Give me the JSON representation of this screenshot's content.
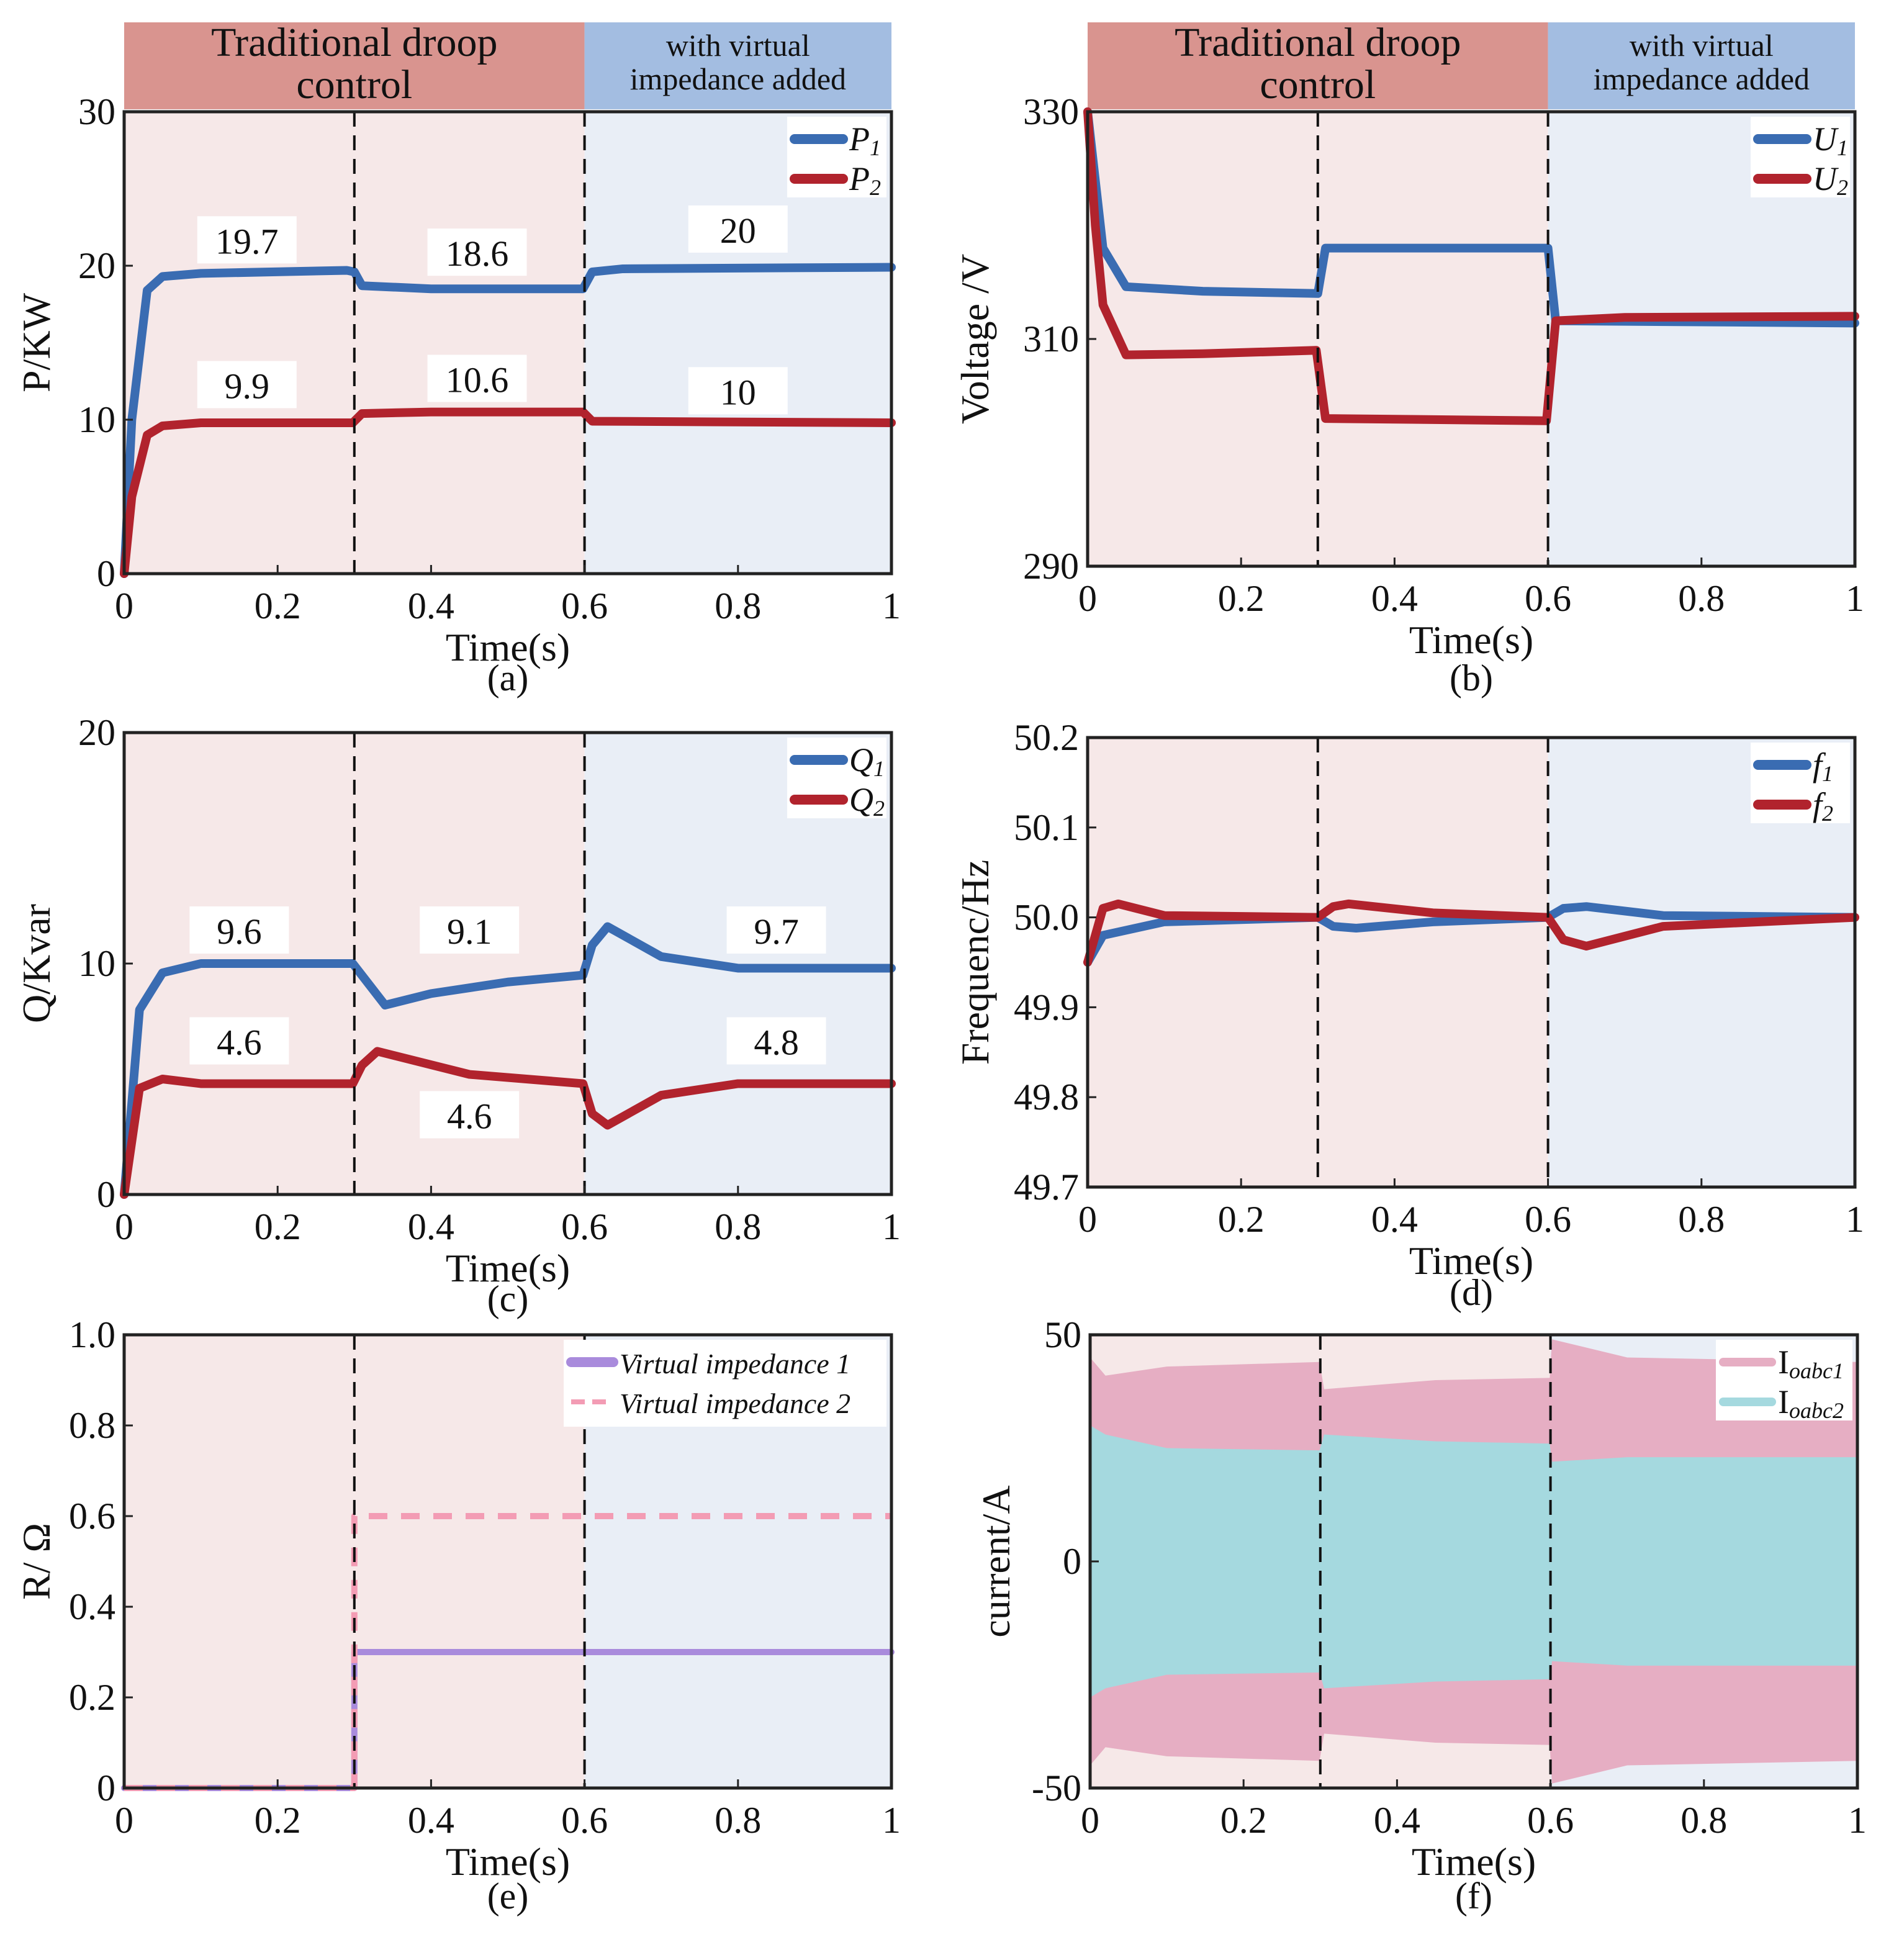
{
  "regions": {
    "traditional": "Traditional droop control",
    "traditional_lines": [
      "Traditional droop",
      "control"
    ],
    "virtual_lines": [
      "with virtual",
      "impedance added"
    ],
    "boundaries": [
      0.3,
      0.6
    ]
  },
  "colors": {
    "header_pink": "#d9948f",
    "header_blue": "#a3bde1",
    "bg_pink": "#f6e8e8",
    "bg_blue": "#e9eef6",
    "blue": "#3a6cb2",
    "red": "#b1232d",
    "purple": "#a98bdc",
    "pink_dash": "#f39cb4",
    "current1": "#e6aec3",
    "current2": "#a5d9df"
  },
  "chart_data": [
    {
      "id": "a",
      "type": "line",
      "caption": "(a)",
      "header": true,
      "xlabel": "Time(s)",
      "ylabel": "P/KW",
      "xlim": [
        0,
        1
      ],
      "ylim": [
        0,
        30
      ],
      "xticks": [
        0,
        0.2,
        0.4,
        0.6,
        0.8,
        1
      ],
      "xticklabels": [
        "0",
        "0.2",
        "0.4",
        "0.6",
        "0.8",
        "1"
      ],
      "yticks": [
        0,
        10,
        20,
        30
      ],
      "yticklabels": [
        "0",
        "10",
        "20",
        "30"
      ],
      "legend": "top-right",
      "series": [
        {
          "name": "P",
          "sub": "1",
          "color": "blue",
          "points": [
            [
              0,
              0
            ],
            [
              0.01,
              10
            ],
            [
              0.03,
              18.4
            ],
            [
              0.05,
              19.3
            ],
            [
              0.1,
              19.5
            ],
            [
              0.29,
              19.7
            ],
            [
              0.3,
              19.6
            ],
            [
              0.31,
              18.7
            ],
            [
              0.4,
              18.5
            ],
            [
              0.598,
              18.5
            ],
            [
              0.61,
              19.6
            ],
            [
              0.65,
              19.8
            ],
            [
              1,
              19.9
            ]
          ]
        },
        {
          "name": "P",
          "sub": "2",
          "color": "red",
          "points": [
            [
              0,
              0
            ],
            [
              0.01,
              5
            ],
            [
              0.03,
              9
            ],
            [
              0.05,
              9.6
            ],
            [
              0.1,
              9.8
            ],
            [
              0.298,
              9.8
            ],
            [
              0.31,
              10.4
            ],
            [
              0.4,
              10.5
            ],
            [
              0.598,
              10.5
            ],
            [
              0.61,
              9.9
            ],
            [
              1,
              9.8
            ]
          ]
        }
      ],
      "annotations": [
        {
          "text": "19.7",
          "x": 0.16,
          "y": 21.6
        },
        {
          "text": "18.6",
          "x": 0.46,
          "y": 20.8
        },
        {
          "text": "20",
          "x": 0.8,
          "y": 22.3
        },
        {
          "text": "9.9",
          "x": 0.16,
          "y": 12.2
        },
        {
          "text": "10.6",
          "x": 0.46,
          "y": 12.6
        },
        {
          "text": "10",
          "x": 0.8,
          "y": 11.8
        }
      ]
    },
    {
      "id": "b",
      "type": "line",
      "caption": "(b)",
      "header": true,
      "xlabel": "Time(s)",
      "ylabel": "Voltage /V",
      "xlim": [
        0,
        1
      ],
      "ylim": [
        290,
        330
      ],
      "xticks": [
        0,
        0.2,
        0.4,
        0.6,
        0.8,
        1
      ],
      "xticklabels": [
        "0",
        "0.2",
        "0.4",
        "0.6",
        "0.8",
        "1"
      ],
      "yticks": [
        290,
        310,
        330
      ],
      "yticklabels": [
        "290",
        "310",
        "330"
      ],
      "legend": "top-right",
      "series": [
        {
          "name": "U",
          "sub": "1",
          "color": "blue",
          "points": [
            [
              0,
              330
            ],
            [
              0.01,
              324
            ],
            [
              0.02,
              318
            ],
            [
              0.05,
              314.6
            ],
            [
              0.15,
              314.2
            ],
            [
              0.3,
              314
            ],
            [
              0.31,
              318
            ],
            [
              0.6,
              318
            ],
            [
              0.61,
              311.6
            ],
            [
              1,
              311.4
            ]
          ]
        },
        {
          "name": "U",
          "sub": "2",
          "color": "red",
          "points": [
            [
              0,
              330
            ],
            [
              0.01,
              320
            ],
            [
              0.02,
              313
            ],
            [
              0.05,
              308.6
            ],
            [
              0.15,
              308.7
            ],
            [
              0.298,
              309
            ],
            [
              0.31,
              303
            ],
            [
              0.598,
              302.8
            ],
            [
              0.61,
              311.6
            ],
            [
              0.7,
              311.9
            ],
            [
              1,
              312
            ]
          ]
        }
      ],
      "annotations": []
    },
    {
      "id": "c",
      "type": "line",
      "caption": "(c)",
      "header": false,
      "xlabel": "Time(s)",
      "ylabel": "Q/Kvar",
      "xlim": [
        0,
        1
      ],
      "ylim": [
        0,
        20
      ],
      "xticks": [
        0,
        0.2,
        0.4,
        0.6,
        0.8,
        1
      ],
      "xticklabels": [
        "0",
        "0.2",
        "0.4",
        "0.6",
        "0.8",
        "1"
      ],
      "yticks": [
        0,
        10,
        20
      ],
      "yticklabels": [
        "0",
        "10",
        "20"
      ],
      "legend": "top-right",
      "series": [
        {
          "name": "Q",
          "sub": "1",
          "color": "blue",
          "points": [
            [
              0,
              0
            ],
            [
              0.02,
              8
            ],
            [
              0.05,
              9.6
            ],
            [
              0.1,
              10
            ],
            [
              0.298,
              10
            ],
            [
              0.305,
              9.7
            ],
            [
              0.34,
              8.2
            ],
            [
              0.4,
              8.7
            ],
            [
              0.5,
              9.2
            ],
            [
              0.598,
              9.5
            ],
            [
              0.61,
              10.8
            ],
            [
              0.63,
              11.6
            ],
            [
              0.7,
              10.3
            ],
            [
              0.8,
              9.8
            ],
            [
              1,
              9.8
            ]
          ]
        },
        {
          "name": "Q",
          "sub": "2",
          "color": "red",
          "points": [
            [
              0,
              0
            ],
            [
              0.02,
              4.6
            ],
            [
              0.05,
              5
            ],
            [
              0.1,
              4.8
            ],
            [
              0.298,
              4.8
            ],
            [
              0.31,
              5.6
            ],
            [
              0.33,
              6.2
            ],
            [
              0.45,
              5.2
            ],
            [
              0.598,
              4.8
            ],
            [
              0.61,
              3.5
            ],
            [
              0.63,
              3
            ],
            [
              0.7,
              4.3
            ],
            [
              0.8,
              4.8
            ],
            [
              1,
              4.8
            ]
          ]
        }
      ],
      "annotations": [
        {
          "text": "9.6",
          "x": 0.15,
          "y": 11.4
        },
        {
          "text": "9.1",
          "x": 0.45,
          "y": 11.4
        },
        {
          "text": "9.7",
          "x": 0.85,
          "y": 11.4
        },
        {
          "text": "4.6",
          "x": 0.15,
          "y": 6.6
        },
        {
          "text": "4.6",
          "x": 0.45,
          "y": 3.4
        },
        {
          "text": "4.8",
          "x": 0.85,
          "y": 6.6
        }
      ]
    },
    {
      "id": "d",
      "type": "line",
      "caption": "(d)",
      "header": false,
      "xlabel": "Time(s)",
      "ylabel": "Frequenc/Hz",
      "xlim": [
        0,
        1
      ],
      "ylim": [
        49.7,
        50.2
      ],
      "xticks": [
        0,
        0.2,
        0.4,
        0.6,
        0.8,
        1
      ],
      "xticklabels": [
        "0",
        "0.2",
        "0.4",
        "0.6",
        "0.8",
        "1"
      ],
      "yticks": [
        49.7,
        49.8,
        49.9,
        50.0,
        50.1,
        50.2
      ],
      "yticklabels": [
        "49.7",
        "49.8",
        "49.9",
        "50.0",
        "50.1",
        "50.2"
      ],
      "legend": "top-right",
      "series": [
        {
          "name": "f",
          "sub": "1",
          "color": "blue",
          "points": [
            [
              0,
              49.95
            ],
            [
              0.02,
              49.98
            ],
            [
              0.1,
              49.995
            ],
            [
              0.3,
              50
            ],
            [
              0.32,
              49.99
            ],
            [
              0.35,
              49.988
            ],
            [
              0.45,
              49.995
            ],
            [
              0.6,
              50
            ],
            [
              0.62,
              50.01
            ],
            [
              0.65,
              50.012
            ],
            [
              0.75,
              50.002
            ],
            [
              1,
              50
            ]
          ]
        },
        {
          "name": "f",
          "sub": "2",
          "color": "red",
          "points": [
            [
              0,
              49.95
            ],
            [
              0.02,
              50.01
            ],
            [
              0.04,
              50.015
            ],
            [
              0.1,
              50.002
            ],
            [
              0.3,
              50
            ],
            [
              0.32,
              50.012
            ],
            [
              0.34,
              50.015
            ],
            [
              0.45,
              50.005
            ],
            [
              0.6,
              50
            ],
            [
              0.62,
              49.975
            ],
            [
              0.65,
              49.968
            ],
            [
              0.75,
              49.99
            ],
            [
              1,
              50
            ]
          ]
        }
      ],
      "annotations": []
    },
    {
      "id": "e",
      "type": "line",
      "caption": "(e)",
      "header": false,
      "xlabel": "Time(s)",
      "ylabel": "R/ Ω",
      "xlim": [
        0,
        1
      ],
      "ylim": [
        0,
        1
      ],
      "xticks": [
        0,
        0.2,
        0.4,
        0.6,
        0.8,
        1
      ],
      "xticklabels": [
        "0",
        "0.2",
        "0.4",
        "0.6",
        "0.8",
        "1"
      ],
      "yticks": [
        0,
        0.2,
        0.4,
        0.6,
        0.8,
        1.0
      ],
      "yticklabels": [
        "0",
        "0.2",
        "0.4",
        "0.6",
        "0.8",
        "1.0"
      ],
      "legend": "top-right",
      "series": [
        {
          "name": "Virtual impedance 1",
          "sub": "",
          "color": "purple",
          "dashed": false,
          "points": [
            [
              0,
              0
            ],
            [
              0.3,
              0
            ],
            [
              0.3,
              0.3
            ],
            [
              1,
              0.3
            ]
          ]
        },
        {
          "name": "Virtual impedance 2",
          "sub": "",
          "color": "pink_dash",
          "dashed": true,
          "points": [
            [
              0,
              0
            ],
            [
              0.3,
              0
            ],
            [
              0.3,
              0.6
            ],
            [
              1,
              0.6
            ]
          ]
        }
      ],
      "annotations": []
    },
    {
      "id": "f",
      "type": "area",
      "caption": "(f)",
      "header": false,
      "xlabel": "Time(s)",
      "ylabel": "current/A",
      "xlim": [
        0,
        1
      ],
      "ylim": [
        -50,
        50
      ],
      "xticks": [
        0,
        0.2,
        0.4,
        0.6,
        0.8,
        1
      ],
      "xticklabels": [
        "0",
        "0.2",
        "0.4",
        "0.6",
        "0.8",
        "1"
      ],
      "yticks": [
        -50,
        0,
        50
      ],
      "yticklabels": [
        "-50",
        "0",
        "50"
      ],
      "legend": "top-right",
      "series": [
        {
          "name": "I",
          "sub": "oabc1",
          "color": "current1",
          "upper": [
            [
              0,
              45
            ],
            [
              0.02,
              41
            ],
            [
              0.1,
              43
            ],
            [
              0.299,
              44
            ],
            [
              0.305,
              38
            ],
            [
              0.45,
              40
            ],
            [
              0.599,
              40.5
            ],
            [
              0.602,
              49
            ],
            [
              0.7,
              45
            ],
            [
              1,
              44
            ]
          ],
          "lower": [
            [
              0,
              -45
            ],
            [
              0.02,
              -41
            ],
            [
              0.1,
              -43
            ],
            [
              0.299,
              -44
            ],
            [
              0.305,
              -38
            ],
            [
              0.45,
              -40
            ],
            [
              0.599,
              -40.5
            ],
            [
              0.602,
              -49
            ],
            [
              0.7,
              -45
            ],
            [
              1,
              -44
            ]
          ]
        },
        {
          "name": "I",
          "sub": "oabc2",
          "color": "current2",
          "upper": [
            [
              0,
              30
            ],
            [
              0.02,
              28
            ],
            [
              0.1,
              25
            ],
            [
              0.299,
              24.5
            ],
            [
              0.305,
              28
            ],
            [
              0.45,
              26.5
            ],
            [
              0.599,
              26
            ],
            [
              0.602,
              22
            ],
            [
              0.7,
              23
            ],
            [
              1,
              23
            ]
          ],
          "lower": [
            [
              0,
              -30
            ],
            [
              0.02,
              -28
            ],
            [
              0.1,
              -25
            ],
            [
              0.299,
              -24.5
            ],
            [
              0.305,
              -28
            ],
            [
              0.45,
              -26.5
            ],
            [
              0.599,
              -26
            ],
            [
              0.602,
              -22
            ],
            [
              0.7,
              -23
            ],
            [
              1,
              -23
            ]
          ]
        }
      ],
      "annotations": []
    }
  ]
}
